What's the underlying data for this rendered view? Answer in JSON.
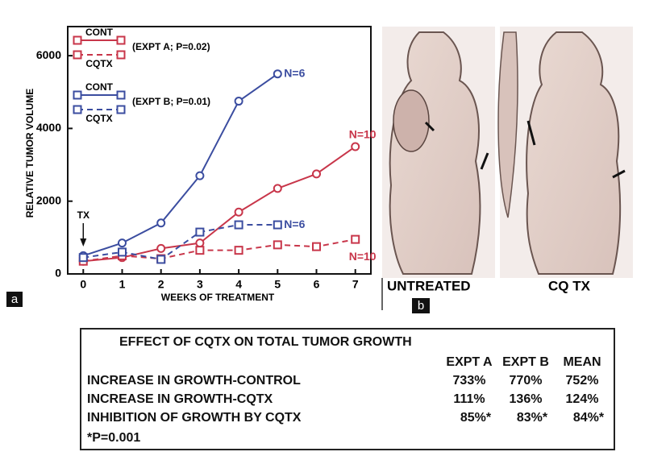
{
  "chart_data": {
    "type": "line",
    "y_label": "RELATIVE TUMOR VOLUME",
    "x_label": "WEEKS OF TREATMENT",
    "x": [
      0,
      1,
      2,
      3,
      4,
      5,
      6,
      7
    ],
    "xlim": [
      -0.4,
      7.4
    ],
    "xticks": [
      0,
      1,
      2,
      3,
      4,
      5,
      6,
      7
    ],
    "ylim": [
      0,
      6800
    ],
    "yticks": [
      0,
      2000,
      4000,
      6000
    ],
    "legend_groups": [
      "(EXPT A; P=0.02)",
      "(EXPT B; P=0.01)"
    ],
    "series": [
      {
        "name": "CONT",
        "color": "#c8364a",
        "line_style": "solid",
        "marker": "circle",
        "end_label": "N=10",
        "values": [
          350,
          450,
          700,
          850,
          1700,
          2350,
          2750,
          3500
        ]
      },
      {
        "name": "CQTX",
        "color": "#c8364a",
        "line_style": "dashed",
        "marker": "square",
        "end_label": "N=10",
        "values": [
          350,
          500,
          420,
          650,
          650,
          800,
          750,
          950
        ]
      },
      {
        "name": "CONT",
        "color": "#3b4da0",
        "line_style": "solid",
        "marker": "circle",
        "end_label": "N=6",
        "values": [
          500,
          850,
          1400,
          2700,
          4750,
          5500,
          null,
          null
        ]
      },
      {
        "name": "CQTX",
        "color": "#3b4da0",
        "line_style": "dashed",
        "marker": "square",
        "end_label": "N=6",
        "values": [
          450,
          600,
          400,
          1150,
          1350,
          1350,
          null,
          null
        ]
      }
    ],
    "annotations": [
      {
        "text": "TX",
        "x": 0
      }
    ]
  },
  "panels": {
    "a": "a",
    "b": "b",
    "photo_left": "UNTREATED",
    "photo_right": "CQ TX"
  },
  "table": {
    "title": "EFFECT OF CQTX ON TOTAL TUMOR GROWTH",
    "columns": [
      "EXPT A",
      "EXPT B",
      "MEAN"
    ],
    "rows": [
      {
        "label": "INCREASE IN GROWTH-CONTROL",
        "cells": [
          "733%",
          "770%",
          "752%"
        ]
      },
      {
        "label": "INCREASE IN GROWTH-CQTX",
        "cells": [
          "111%",
          "136%",
          "124%"
        ]
      },
      {
        "label": "INHIBITION OF GROWTH BY CQTX",
        "cells": [
          "85%*",
          "83%*",
          "84%*"
        ]
      }
    ],
    "footnote": "*P=0.001"
  }
}
